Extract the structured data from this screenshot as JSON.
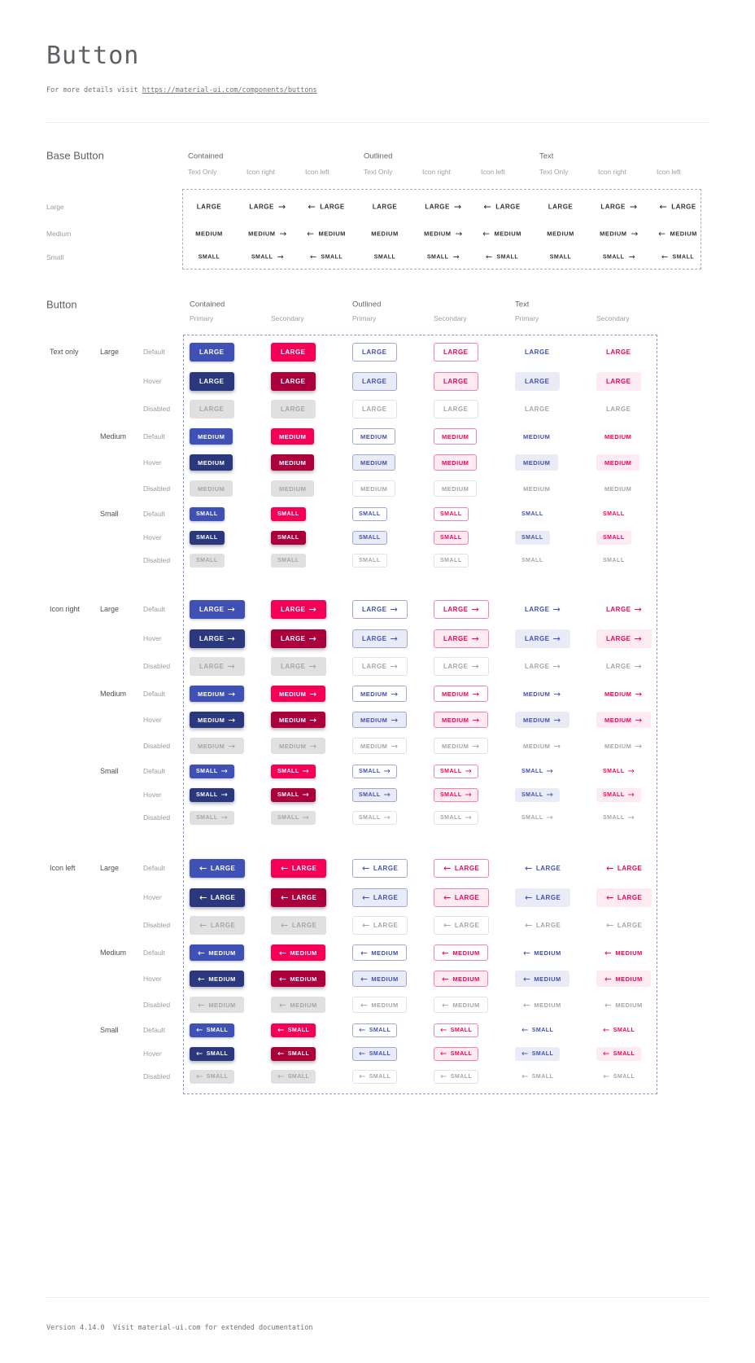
{
  "page": {
    "title": "Button",
    "subtitle_prefix": "For more details visit ",
    "subtitle_link": "https://material-ui.com/components/buttons",
    "footer": "Version 4.14.0  Visit material-ui.com for extended documentation"
  },
  "icons": {
    "arrow_right_icon": "→",
    "arrow_left_icon": "←"
  },
  "colors": {
    "primary": "#3f51b5",
    "primary_dark": "#2c387e",
    "secondary": "#f50057",
    "secondary_dark": "#ab003c",
    "disabled_bg": "#e0e0e0",
    "disabled_text": "#a6a6a6",
    "primary_tint": "#e9ebf7",
    "secondary_tint": "#feeaf2",
    "primary_border": "#9fa8da",
    "secondary_border": "#fa80ab"
  },
  "base_section": {
    "heading": "Base Button",
    "group_headers": [
      "Contained",
      "Outlined",
      "Text"
    ],
    "sub_headers": [
      "Text Only",
      "Icon right",
      "Icon left"
    ],
    "row_labels": [
      "Large",
      "Medium",
      "Small"
    ],
    "button_texts": [
      "LARGE",
      "MEDIUM",
      "SMALL"
    ]
  },
  "button_section": {
    "heading": "Button",
    "group_headers": [
      "Contained",
      "Outlined",
      "Text"
    ],
    "sub_headers": [
      "Primary",
      "Secondary"
    ],
    "icon_groups": [
      "Text only",
      "Icon right",
      "Icon left"
    ],
    "size_labels": [
      "Large",
      "Medium",
      "Small"
    ],
    "state_labels": [
      "Default",
      "Hover",
      "Disabled"
    ],
    "button_texts": [
      "LARGE",
      "MEDIUM",
      "SMALL"
    ]
  }
}
